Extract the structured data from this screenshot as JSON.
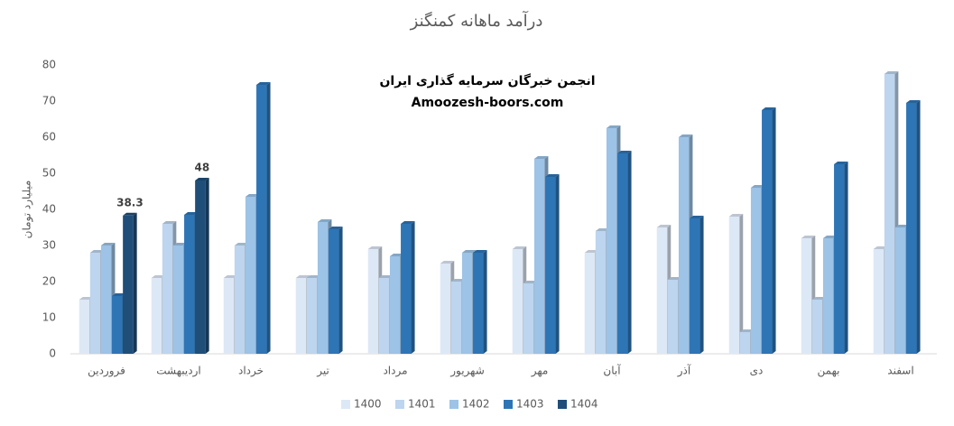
{
  "chart_data": {
    "type": "bar",
    "title": "درآمد ماهانه کمنگنز",
    "y_label": "میلیارد تومان",
    "annotations": [
      "انجمن خبرگان سرمایه گذاری ایران",
      "Amoozesh-boors.com"
    ],
    "categories": [
      "فروردین",
      "اردیبهشت",
      "خرداد",
      "تیر",
      "مرداد",
      "شهریور",
      "مهر",
      "آبان",
      "آذر",
      "دی",
      "بهمن",
      "اسفند"
    ],
    "series": [
      {
        "name": "1400",
        "color": "#dde8f6",
        "values": [
          15,
          21,
          21,
          21,
          29,
          25,
          29,
          28,
          35,
          38,
          32,
          29
        ]
      },
      {
        "name": "1401",
        "color": "#bdd5ee",
        "values": [
          28,
          36,
          30,
          21,
          21,
          20,
          19.5,
          34,
          20.5,
          6,
          15,
          77.5
        ]
      },
      {
        "name": "1402",
        "color": "#9dc3e6",
        "values": [
          30,
          30,
          43.5,
          36.5,
          27,
          28,
          54,
          62.5,
          60,
          46,
          32,
          35
        ]
      },
      {
        "name": "1403",
        "color": "#2e75b6",
        "values": [
          16,
          38.5,
          74.5,
          34.5,
          36,
          28,
          49,
          55.5,
          37.5,
          67.5,
          52.5,
          69.5
        ]
      },
      {
        "name": "1404",
        "color": "#1f4e79",
        "values": [
          38.3,
          48,
          null,
          null,
          null,
          null,
          null,
          null,
          null,
          null,
          null,
          null
        ],
        "show_labels": true
      }
    ],
    "ylim": [
      0,
      80
    ],
    "yticks": [
      0,
      10,
      20,
      30,
      40,
      50,
      60,
      70,
      80
    ],
    "grid": false,
    "legend": "bottom"
  }
}
